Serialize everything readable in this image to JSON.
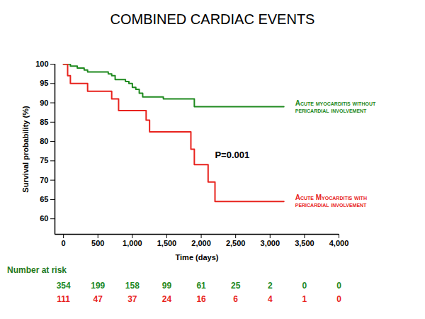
{
  "chart_data": {
    "type": "line",
    "title": "COMBINED CARDIAC EVENTS",
    "xlabel": "Time (days)",
    "ylabel": "Survival probability (%)",
    "xlim": [
      -125,
      4000
    ],
    "xticks": [
      0,
      500,
      1000,
      1500,
      2000,
      2500,
      3000,
      3500,
      4000
    ],
    "ylim": [
      56,
      100
    ],
    "yticks": [
      60,
      65,
      70,
      75,
      80,
      85,
      90,
      95,
      100
    ],
    "grid": false,
    "series": [
      {
        "name": "Acute myocarditis without pericardial involvement",
        "color": "#1f8a1f",
        "line_style": "step",
        "x": [
          0,
          100,
          200,
          300,
          350,
          650,
          700,
          750,
          900,
          950,
          1000,
          1050,
          1100,
          1150,
          1450,
          1900,
          3200
        ],
        "values": [
          100,
          99.5,
          99,
          98.5,
          98,
          97.5,
          97,
          96,
          95.5,
          95,
          94,
          93.5,
          92.5,
          91.5,
          91,
          89,
          89
        ]
      },
      {
        "name": "Acute Myocarditis with pericardial involvement",
        "color": "#e8231e",
        "line_style": "step",
        "x": [
          0,
          60,
          100,
          350,
          700,
          800,
          1200,
          1250,
          1850,
          1900,
          2100,
          2200,
          3200
        ],
        "values": [
          100,
          97,
          95,
          93,
          91,
          88,
          85.5,
          82.5,
          78,
          74,
          69.5,
          64.5,
          64.5
        ]
      }
    ],
    "annotations": [
      {
        "text": "P=0.001",
        "x": 2450,
        "y": 76.5
      }
    ],
    "number_at_risk": {
      "title": "Number at risk",
      "x": [
        0,
        500,
        1000,
        1500,
        2000,
        2500,
        3000,
        3500,
        4000
      ],
      "series": [
        {
          "color": "#1f8a1f",
          "values": [
            354,
            199,
            158,
            99,
            61,
            25,
            2,
            0,
            0
          ]
        },
        {
          "color": "#e8231e",
          "values": [
            111,
            47,
            37,
            24,
            16,
            6,
            4,
            1,
            0
          ]
        }
      ]
    }
  }
}
